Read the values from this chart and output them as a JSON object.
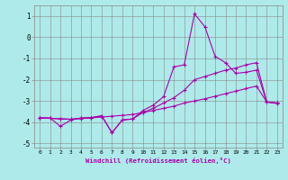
{
  "xlabel": "Windchill (Refroidissement éolien,°C)",
  "bg_color": "#aeeaea",
  "grid_color": "#888888",
  "line_color": "#aa00aa",
  "xlim": [
    -0.5,
    23.5
  ],
  "ylim": [
    -5.2,
    1.5
  ],
  "yticks": [
    -5,
    -4,
    -3,
    -2,
    -1,
    0,
    1
  ],
  "xticks": [
    0,
    1,
    2,
    3,
    4,
    5,
    6,
    7,
    8,
    9,
    10,
    11,
    12,
    13,
    14,
    15,
    16,
    17,
    18,
    19,
    20,
    21,
    22,
    23
  ],
  "line1_x": [
    0,
    1,
    2,
    3,
    4,
    5,
    6,
    7,
    8,
    9,
    10,
    11,
    12,
    13,
    14,
    15,
    16,
    17,
    18,
    19,
    20,
    21,
    22,
    23
  ],
  "line1_y": [
    -3.8,
    -3.8,
    -4.2,
    -3.9,
    -3.8,
    -3.8,
    -3.7,
    -4.5,
    -3.9,
    -3.85,
    -3.55,
    -3.35,
    -3.1,
    -2.85,
    -2.5,
    -2.0,
    -1.85,
    -1.7,
    -1.55,
    -1.45,
    -1.3,
    -1.2,
    -3.05,
    -3.1
  ],
  "line2_x": [
    0,
    1,
    2,
    3,
    4,
    5,
    6,
    7,
    8,
    9,
    10,
    11,
    12,
    13,
    14,
    15,
    16,
    17,
    18,
    19,
    20,
    21,
    22,
    23
  ],
  "line2_y": [
    -3.8,
    -3.82,
    -3.84,
    -3.86,
    -3.82,
    -3.8,
    -3.76,
    -3.72,
    -3.68,
    -3.64,
    -3.55,
    -3.45,
    -3.35,
    -3.25,
    -3.1,
    -3.0,
    -2.9,
    -2.78,
    -2.66,
    -2.54,
    -2.42,
    -2.3,
    -3.05,
    -3.12
  ],
  "line3_x": [
    0,
    1,
    2,
    3,
    4,
    5,
    6,
    7,
    8,
    9,
    10,
    11,
    12,
    13,
    14,
    15,
    16,
    17,
    18,
    19,
    20,
    21,
    22,
    23
  ],
  "line3_y": [
    -3.8,
    -3.82,
    -3.85,
    -3.87,
    -3.83,
    -3.78,
    -3.7,
    -4.5,
    -3.9,
    -3.85,
    -3.45,
    -3.2,
    -2.8,
    -1.4,
    -1.3,
    1.1,
    0.5,
    -0.9,
    -1.2,
    -1.7,
    -1.65,
    -1.55,
    -3.05,
    -3.1
  ]
}
